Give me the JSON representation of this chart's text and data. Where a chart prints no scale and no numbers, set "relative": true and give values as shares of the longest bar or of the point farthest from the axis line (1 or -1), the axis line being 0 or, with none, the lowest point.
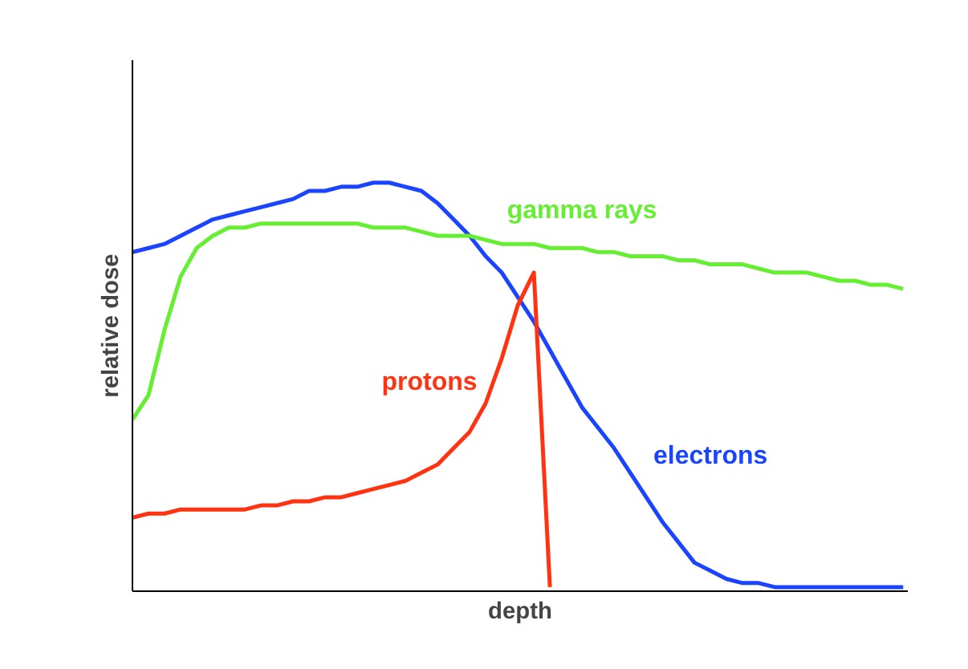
{
  "chart_data": {
    "type": "line",
    "relative": true,
    "xlabel": "depth",
    "ylabel": "relative dose",
    "marker": "none",
    "line_style": "solid",
    "categories": [
      null,
      null,
      null,
      null,
      null,
      null,
      null,
      null,
      null,
      null,
      null,
      null,
      null,
      null,
      null,
      null,
      null,
      null,
      null,
      null,
      null,
      null,
      null,
      null,
      null,
      null,
      null,
      null,
      null,
      null,
      null,
      null,
      null,
      null,
      null,
      null,
      null,
      null,
      null,
      null,
      null,
      null,
      null,
      null,
      null,
      null,
      null,
      null,
      null
    ],
    "series": [
      {
        "name": "electrons",
        "color": "#1a44ff",
        "values": [
          0.83,
          0.84,
          0.85,
          0.87,
          0.89,
          0.91,
          0.92,
          0.93,
          0.94,
          0.95,
          0.96,
          0.98,
          0.98,
          0.99,
          0.99,
          1.0,
          1.0,
          0.99,
          0.98,
          0.95,
          0.91,
          0.87,
          0.82,
          0.78,
          0.72,
          0.66,
          0.59,
          0.52,
          0.45,
          0.4,
          0.35,
          0.29,
          0.23,
          0.17,
          0.12,
          0.07,
          0.05,
          0.03,
          0.02,
          0.02,
          0.01,
          0.01,
          0.01,
          0.01,
          0.01,
          0.01,
          0.01,
          0.01,
          0.01
        ]
      },
      {
        "name": "gamma rays",
        "color": "#66ee33",
        "values": [
          0.42,
          0.48,
          0.64,
          0.77,
          0.84,
          0.87,
          0.89,
          0.89,
          0.9,
          0.9,
          0.9,
          0.9,
          0.9,
          0.9,
          0.9,
          0.89,
          0.89,
          0.89,
          0.88,
          0.87,
          0.87,
          0.87,
          0.86,
          0.85,
          0.85,
          0.85,
          0.84,
          0.84,
          0.84,
          0.83,
          0.83,
          0.82,
          0.82,
          0.82,
          0.81,
          0.81,
          0.8,
          0.8,
          0.8,
          0.79,
          0.78,
          0.78,
          0.78,
          0.77,
          0.76,
          0.76,
          0.75,
          0.75,
          0.74
        ]
      },
      {
        "name": "protons",
        "color": "#ff3311",
        "values": [
          0.18,
          0.19,
          0.19,
          0.2,
          0.2,
          0.2,
          0.2,
          0.2,
          0.21,
          0.21,
          0.22,
          0.22,
          0.23,
          0.23,
          0.24,
          0.25,
          0.26,
          0.27,
          0.29,
          0.31,
          0.35,
          0.39,
          0.46,
          0.57,
          0.7,
          0.78,
          0.01,
          null,
          null,
          null,
          null,
          null,
          null,
          null,
          null,
          null,
          null,
          null,
          null,
          null,
          null,
          null,
          null,
          null,
          null,
          null,
          null,
          null,
          null
        ]
      }
    ]
  }
}
